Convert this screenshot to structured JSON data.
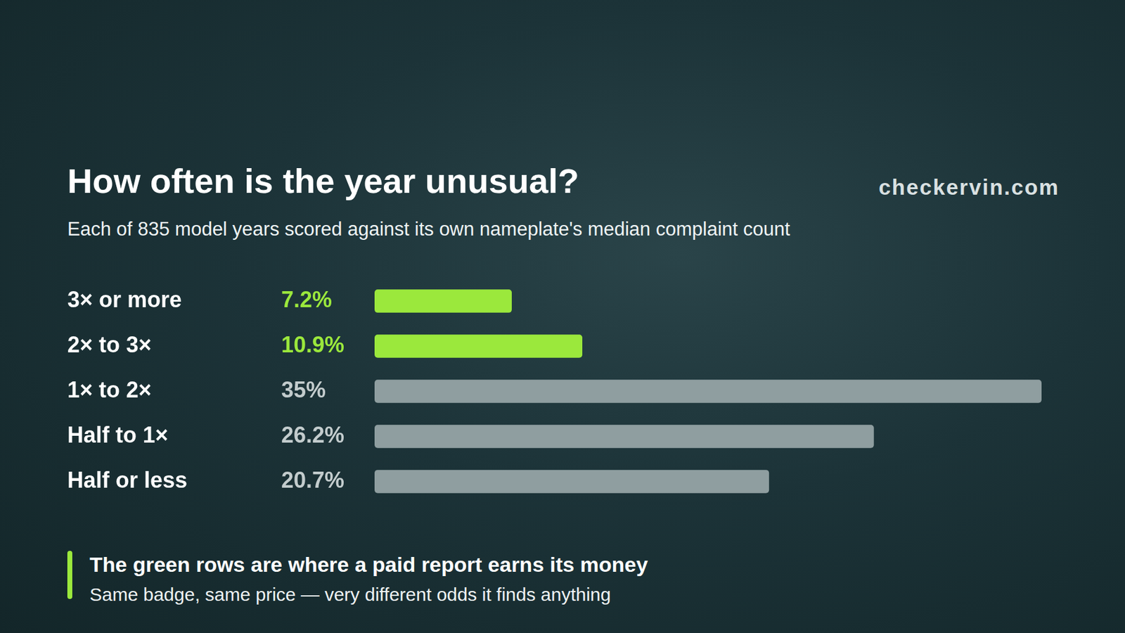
{
  "chart_data": {
    "type": "bar",
    "orientation": "horizontal",
    "title": "How often is the year unusual?",
    "subtitle": "Each of 835 model years scored against its own nameplate's median complaint count",
    "source": "checkervin.com",
    "note_title": "The green rows are where a paid report earns its money",
    "note": "Same badge, same price — very different odds it finds anything",
    "categories": [
      "3× or more",
      "2× to 3×",
      "1× to 2×",
      "Half to 1×",
      "Half or less"
    ],
    "values": [
      7.2,
      10.9,
      35,
      26.2,
      20.7
    ],
    "value_labels": [
      "7.2%",
      "10.9%",
      "35%",
      "26.2%",
      "20.7%"
    ],
    "colors": [
      "#9be83c",
      "#9be83c",
      "#8f9ea0",
      "#8f9ea0",
      "#8f9ea0"
    ],
    "xlim": [
      0,
      35
    ],
    "data_labels": true,
    "tick_labels": "y",
    "grid": false
  }
}
